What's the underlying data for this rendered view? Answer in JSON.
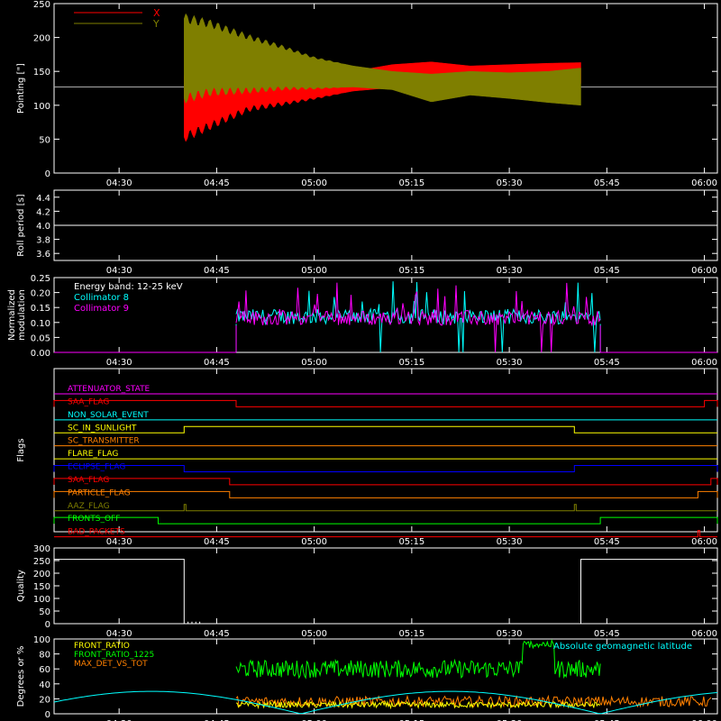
{
  "time_ticks": [
    "04:30",
    "04:45",
    "05:00",
    "05:15",
    "05:30",
    "05:45",
    "06:00"
  ],
  "chart_data": [
    {
      "id": "pointing",
      "type": "line",
      "ylabel": "Pointing [\"]",
      "ylim": [
        0,
        250
      ],
      "yticks": [
        "0",
        "50",
        "100",
        "150",
        "200",
        "250"
      ],
      "xlim": [
        "04:20",
        "06:02"
      ],
      "legend": [
        {
          "name": "X",
          "color": "#ff0000"
        },
        {
          "name": "Y",
          "color": "#7f7f00"
        }
      ],
      "baseline": 127,
      "active_range": [
        "04:40",
        "05:41"
      ],
      "series": [
        {
          "name": "X",
          "color": "#ff0000",
          "envelope_time": [
            "04:40",
            "04:44",
            "04:50",
            "04:55",
            "05:00",
            "05:06",
            "05:12",
            "05:18",
            "05:24",
            "05:30",
            "05:36",
            "05:41"
          ],
          "upper": [
            143,
            140,
            136,
            134,
            141,
            150,
            160,
            164,
            158,
            160,
            162,
            163
          ],
          "lower": [
            53,
            70,
            95,
            102,
            110,
            121,
            126,
            130,
            127,
            128,
            130,
            132
          ]
        },
        {
          "name": "Y",
          "color": "#7f7f00",
          "envelope_time": [
            "04:40",
            "04:44",
            "04:50",
            "04:55",
            "05:00",
            "05:06",
            "05:12",
            "05:18",
            "05:24",
            "05:30",
            "05:36",
            "05:41"
          ],
          "upper": [
            228,
            220,
            200,
            186,
            170,
            158,
            150,
            146,
            150,
            148,
            150,
            155
          ],
          "lower": [
            110,
            120,
            122,
            125,
            125,
            127,
            123,
            105,
            115,
            110,
            104,
            100
          ]
        }
      ]
    },
    {
      "id": "roll_period",
      "type": "line",
      "ylabel": "Roll period [s]",
      "ylim": [
        3.5,
        4.5
      ],
      "yticks": [
        "3.6",
        "3.8",
        "4.0",
        "4.2",
        "4.4"
      ],
      "series": [
        {
          "name": "",
          "color": "#ffffff",
          "value": 4.0
        }
      ]
    },
    {
      "id": "modulation",
      "type": "line",
      "ylabel": "Normalized modulation",
      "ylim": [
        0,
        0.25
      ],
      "yticks": [
        "0.00",
        "0.05",
        "0.10",
        "0.15",
        "0.20",
        "0.25"
      ],
      "annotation": "Energy band: 12-25 keV",
      "active_range": [
        "04:48",
        "05:44"
      ],
      "series": [
        {
          "name": "Collimator 8",
          "color": "#00ffff",
          "baseline": 0.095
        },
        {
          "name": "Collimator 9",
          "color": "#ff00ff",
          "baseline": 0.09
        }
      ]
    },
    {
      "id": "flags",
      "type": "line",
      "ylabel": "Flags",
      "series": [
        {
          "name": "ATTENUATOR_STATE",
          "color": "#ff00ff",
          "high_ranges": []
        },
        {
          "name": "SAA_FLAG",
          "color": "#ff0000",
          "high_ranges": [
            [
              "04:20",
              "04:48"
            ],
            [
              "06:00",
              "06:02"
            ]
          ]
        },
        {
          "name": "NON_SOLAR_EVENT",
          "color": "#00ffff",
          "high_ranges": []
        },
        {
          "name": "SC_IN_SUNLIGHT",
          "color": "#ffff00",
          "high_ranges": [
            [
              "04:40",
              "05:40"
            ]
          ]
        },
        {
          "name": "SC_TRANSMITTER",
          "color": "#ff8000",
          "high_ranges": []
        },
        {
          "name": "FLARE_FLAG",
          "color": "#ffff00",
          "high_ranges": []
        },
        {
          "name": "ECLIPSE_FLAG",
          "color": "#0000ff",
          "high_ranges": [
            [
              "04:20",
              "04:40"
            ],
            [
              "05:40",
              "06:02"
            ]
          ]
        },
        {
          "name": "SAA_FLAG",
          "color": "#ff0000",
          "high_ranges": [
            [
              "04:20",
              "04:47"
            ],
            [
              "06:01",
              "06:02"
            ]
          ]
        },
        {
          "name": "PARTICLE_FLAG",
          "color": "#ff8000",
          "high_ranges": [
            [
              "04:20",
              "04:47"
            ],
            [
              "05:59",
              "06:02"
            ]
          ]
        },
        {
          "name": "AAZ_FLAG",
          "color": "#7f7f00",
          "high_ranges": [
            [
              "04:40",
              "04:40"
            ],
            [
              "05:40",
              "05:40"
            ]
          ]
        },
        {
          "name": "FRONTS_OFF",
          "color": "#00ff00",
          "high_ranges": [
            [
              "04:20",
              "04:36"
            ],
            [
              "05:44",
              "06:02"
            ]
          ]
        },
        {
          "name": "BAD_PACKETS",
          "color": "#ff0000",
          "high_ranges": [
            [
              "05:59",
              "05:59"
            ]
          ]
        }
      ]
    },
    {
      "id": "quality",
      "type": "line",
      "ylabel": "Quality",
      "ylim": [
        0,
        300
      ],
      "yticks": [
        "0",
        "50",
        "100",
        "150",
        "200",
        "250",
        "300"
      ],
      "series": [
        {
          "name": "",
          "color": "#ffffff",
          "points": [
            [
              "04:20",
              255
            ],
            [
              "04:40",
              255
            ],
            [
              "04:40",
              0
            ],
            [
              "05:41",
              0
            ],
            [
              "05:41",
              255
            ],
            [
              "06:02",
              255
            ]
          ]
        }
      ]
    },
    {
      "id": "ratios",
      "type": "line",
      "ylabel": "Degrees or %",
      "ylim": [
        0,
        100
      ],
      "yticks": [
        "0",
        "20",
        "40",
        "60",
        "80",
        "100"
      ],
      "legend": [
        {
          "name": "FRONT_RATIO",
          "color": "#ffff00"
        },
        {
          "name": "FRONT_RATIO_1225",
          "color": "#00ff00"
        },
        {
          "name": "MAX_DET_VS_TOT",
          "color": "#ff8000"
        },
        {
          "name": "Absolute geomagnetic latitude",
          "color": "#00ffff"
        }
      ],
      "series": [
        {
          "name": "FRONT_RATIO_1225",
          "color": "#00ff00",
          "baseline": 60,
          "range": [
            "04:48",
            "05:44"
          ]
        },
        {
          "name": "MAX_DET_VS_TOT",
          "color": "#ff8000",
          "baseline": 15,
          "range": [
            "04:48",
            "06:01"
          ]
        },
        {
          "name": "FRONT_RATIO",
          "color": "#ffff00",
          "baseline": 12,
          "range": [
            "04:48",
            "05:44"
          ]
        },
        {
          "name": "Absolute geomagnetic latitude",
          "color": "#00ffff",
          "range": [
            "04:20",
            "06:02"
          ]
        }
      ]
    }
  ]
}
